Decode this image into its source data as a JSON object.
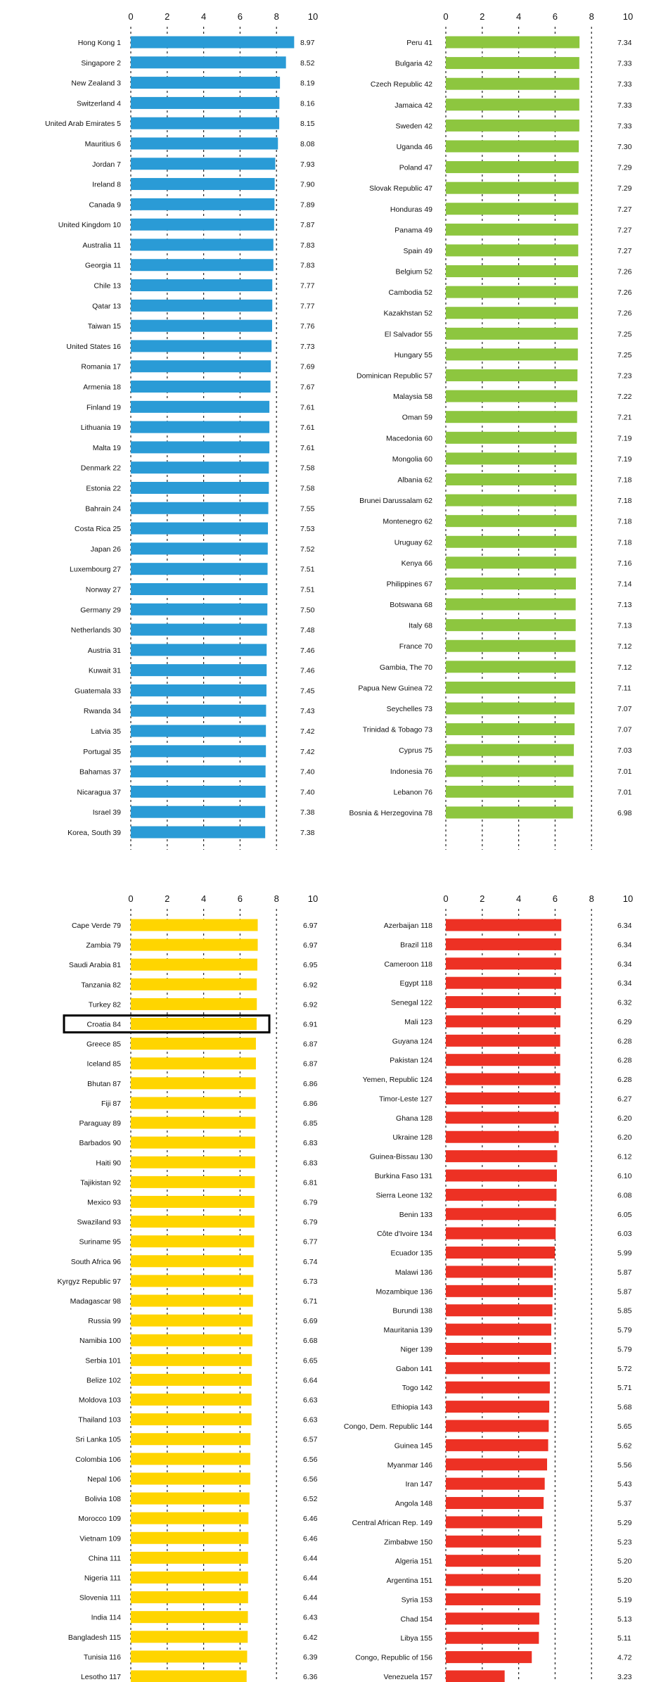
{
  "chart_data": [
    {
      "type": "bar",
      "orientation": "horizontal",
      "color": "#2a9bd6",
      "xlim": [
        0,
        10
      ],
      "xticks": [
        "0",
        "2",
        "4",
        "6",
        "8",
        "10"
      ],
      "grid": "vertical dotted",
      "categories": [
        "Hong Kong 1",
        "Singapore 2",
        "New Zealand 3",
        "Switzerland 4",
        "United Arab Emirates 5",
        "Mauritius 6",
        "Jordan 7",
        "Ireland 8",
        "Canada 9",
        "United Kingdom 10",
        "Australia 11",
        "Georgia 11",
        "Chile 13",
        "Qatar 13",
        "Taiwan 15",
        "United States 16",
        "Romania 17",
        "Armenia 18",
        "Finland 19",
        "Lithuania 19",
        "Malta 19",
        "Denmark 22",
        "Estonia 22",
        "Bahrain 24",
        "Costa Rica 25",
        "Japan 26",
        "Luxembourg 27",
        "Norway 27",
        "Germany 29",
        "Netherlands 30",
        "Austria 31",
        "Kuwait 31",
        "Guatemala 33",
        "Rwanda 34",
        "Latvia 35",
        "Portugal 35",
        "Bahamas 37",
        "Nicaragua 37",
        "Israel 39",
        "Korea, South 39"
      ],
      "values": [
        8.97,
        8.52,
        8.19,
        8.16,
        8.15,
        8.08,
        7.93,
        7.9,
        7.89,
        7.87,
        7.83,
        7.83,
        7.77,
        7.77,
        7.76,
        7.73,
        7.69,
        7.67,
        7.61,
        7.61,
        7.61,
        7.58,
        7.58,
        7.55,
        7.53,
        7.52,
        7.51,
        7.51,
        7.5,
        7.48,
        7.46,
        7.46,
        7.45,
        7.43,
        7.42,
        7.42,
        7.4,
        7.4,
        7.38,
        7.38
      ],
      "value_labels": [
        "8.97",
        "8.52",
        "8.19",
        "8.16",
        "8.15",
        "8.08",
        "7.93",
        "7.90",
        "7.89",
        "7.87",
        "7.83",
        "7.83",
        "7.77",
        "7.77",
        "7.76",
        "7.73",
        "7.69",
        "7.67",
        "7.61",
        "7.61",
        "7.61",
        "7.58",
        "7.58",
        "7.55",
        "7.53",
        "7.52",
        "7.51",
        "7.51",
        "7.50",
        "7.48",
        "7.46",
        "7.46",
        "7.45",
        "7.43",
        "7.42",
        "7.42",
        "7.40",
        "7.40",
        "7.38",
        "7.38"
      ]
    },
    {
      "type": "bar",
      "orientation": "horizontal",
      "color": "#8dc63f",
      "xlim": [
        0,
        10
      ],
      "xticks": [
        "0",
        "2",
        "4",
        "6",
        "8",
        "10"
      ],
      "grid": "vertical dotted",
      "categories": [
        "Peru 41",
        "Bulgaria 42",
        "Czech Republic 42",
        "Jamaica 42",
        "Sweden 42",
        "Uganda 46",
        "Poland 47",
        "Slovak Republic 47",
        "Honduras 49",
        "Panama 49",
        "Spain 49",
        "Belgium 52",
        "Cambodia 52",
        "Kazakhstan 52",
        "El Salvador 55",
        "Hungary 55",
        "Dominican Republic 57",
        "Malaysia 58",
        "Oman 59",
        "Macedonia 60",
        "Mongolia 60",
        "Albania 62",
        "Brunei Darussalam 62",
        "Montenegro 62",
        "Uruguay 62",
        "Kenya 66",
        "Philippines 67",
        "Botswana 68",
        "Italy 68",
        "France 70",
        "Gambia, The 70",
        "Papua New Guinea 72",
        "Seychelles 73",
        "Trinidad & Tobago 73",
        "Cyprus 75",
        "Indonesia 76",
        "Lebanon 76",
        "Bosnia & Herzegovina 78"
      ],
      "values": [
        7.34,
        7.33,
        7.33,
        7.33,
        7.33,
        7.3,
        7.29,
        7.29,
        7.27,
        7.27,
        7.27,
        7.26,
        7.26,
        7.26,
        7.25,
        7.25,
        7.23,
        7.22,
        7.21,
        7.19,
        7.19,
        7.18,
        7.18,
        7.18,
        7.18,
        7.16,
        7.14,
        7.13,
        7.13,
        7.12,
        7.12,
        7.11,
        7.07,
        7.07,
        7.03,
        7.01,
        7.01,
        6.98
      ],
      "value_labels": [
        "7.34",
        "7.33",
        "7.33",
        "7.33",
        "7.33",
        "7.30",
        "7.29",
        "7.29",
        "7.27",
        "7.27",
        "7.27",
        "7.26",
        "7.26",
        "7.26",
        "7.25",
        "7.25",
        "7.23",
        "7.22",
        "7.21",
        "7.19",
        "7.19",
        "7.18",
        "7.18",
        "7.18",
        "7.18",
        "7.16",
        "7.14",
        "7.13",
        "7.13",
        "7.12",
        "7.12",
        "7.11",
        "7.07",
        "7.07",
        "7.03",
        "7.01",
        "7.01",
        "6.98"
      ]
    },
    {
      "type": "bar",
      "orientation": "horizontal",
      "color": "#ffd500",
      "xlim": [
        0,
        10
      ],
      "xticks": [
        "0",
        "2",
        "4",
        "6",
        "8",
        "10"
      ],
      "grid": "vertical dotted",
      "highlighted_category": "Croatia 84",
      "categories": [
        "Cape Verde 79",
        "Zambia 79",
        "Saudi Arabia 81",
        "Tanzania 82",
        "Turkey 82",
        "Croatia 84",
        "Greece 85",
        "Iceland 85",
        "Bhutan 87",
        "Fiji 87",
        "Paraguay 89",
        "Barbados 90",
        "Haiti 90",
        "Tajikistan 92",
        "Mexico 93",
        "Swaziland 93",
        "Suriname 95",
        "South Africa 96",
        "Kyrgyz Republic 97",
        "Madagascar 98",
        "Russia 99",
        "Namibia 100",
        "Serbia 101",
        "Belize 102",
        "Moldova 103",
        "Thailand 103",
        "Sri Lanka 105",
        "Colombia 106",
        "Nepal 106",
        "Bolivia 108",
        "Morocco 109",
        "Vietnam 109",
        "China 111",
        "Nigeria 111",
        "Slovenia 111",
        "India 114",
        "Bangladesh 115",
        "Tunisia 116",
        "Lesotho 117"
      ],
      "values": [
        6.97,
        6.97,
        6.95,
        6.92,
        6.92,
        6.91,
        6.87,
        6.87,
        6.86,
        6.86,
        6.85,
        6.83,
        6.83,
        6.81,
        6.79,
        6.79,
        6.77,
        6.74,
        6.73,
        6.71,
        6.69,
        6.68,
        6.65,
        6.64,
        6.63,
        6.63,
        6.57,
        6.56,
        6.56,
        6.52,
        6.46,
        6.46,
        6.44,
        6.44,
        6.44,
        6.43,
        6.42,
        6.39,
        6.36
      ],
      "value_labels": [
        "6.97",
        "6.97",
        "6.95",
        "6.92",
        "6.92",
        "6.91",
        "6.87",
        "6.87",
        "6.86",
        "6.86",
        "6.85",
        "6.83",
        "6.83",
        "6.81",
        "6.79",
        "6.79",
        "6.77",
        "6.74",
        "6.73",
        "6.71",
        "6.69",
        "6.68",
        "6.65",
        "6.64",
        "6.63",
        "6.63",
        "6.57",
        "6.56",
        "6.56",
        "6.52",
        "6.46",
        "6.46",
        "6.44",
        "6.44",
        "6.44",
        "6.43",
        "6.42",
        "6.39",
        "6.36"
      ]
    },
    {
      "type": "bar",
      "orientation": "horizontal",
      "color": "#ed3124",
      "xlim": [
        0,
        10
      ],
      "xticks": [
        "0",
        "2",
        "4",
        "6",
        "8",
        "10"
      ],
      "grid": "vertical dotted",
      "categories": [
        "Azerbaijan 118",
        "Brazil 118",
        "Cameroon 118",
        "Egypt 118",
        "Senegal 122",
        "Mali 123",
        "Guyana 124",
        "Pakistan 124",
        "Yemen, Republic 124",
        "Timor-Leste 127",
        "Ghana 128",
        "Ukraine 128",
        "Guinea-Bissau 130",
        "Burkina Faso 131",
        "Sierra Leone 132",
        "Benin 133",
        "Côte d'Ivoire 134",
        "Ecuador 135",
        "Malawi 136",
        "Mozambique 136",
        "Burundi 138",
        "Mauritania 139",
        "Niger 139",
        "Gabon 141",
        "Togo 142",
        "Ethiopia 143",
        "Congo, Dem. Republic 144",
        "Guinea 145",
        "Myanmar 146",
        "Iran 147",
        "Angola 148",
        "Central African Rep. 149",
        "Zimbabwe 150",
        "Algeria 151",
        "Argentina 151",
        "Syria 153",
        "Chad 154",
        "Libya 155",
        "Congo, Republic of 156",
        "Venezuela 157"
      ],
      "values": [
        6.34,
        6.34,
        6.34,
        6.34,
        6.32,
        6.29,
        6.28,
        6.28,
        6.28,
        6.27,
        6.2,
        6.2,
        6.12,
        6.1,
        6.08,
        6.05,
        6.03,
        5.99,
        5.87,
        5.87,
        5.85,
        5.79,
        5.79,
        5.72,
        5.71,
        5.68,
        5.65,
        5.62,
        5.56,
        5.43,
        5.37,
        5.29,
        5.23,
        5.2,
        5.2,
        5.19,
        5.13,
        5.11,
        4.72,
        3.23
      ],
      "value_labels": [
        "6.34",
        "6.34",
        "6.34",
        "6.34",
        "6.32",
        "6.29",
        "6.28",
        "6.28",
        "6.28",
        "6.27",
        "6.20",
        "6.20",
        "6.12",
        "6.10",
        "6.08",
        "6.05",
        "6.03",
        "5.99",
        "5.87",
        "5.87",
        "5.85",
        "5.79",
        "5.79",
        "5.72",
        "5.71",
        "5.68",
        "5.65",
        "5.62",
        "5.56",
        "5.43",
        "5.37",
        "5.29",
        "5.23",
        "5.20",
        "5.20",
        "5.19",
        "5.13",
        "5.11",
        "4.72",
        "3.23"
      ]
    }
  ]
}
